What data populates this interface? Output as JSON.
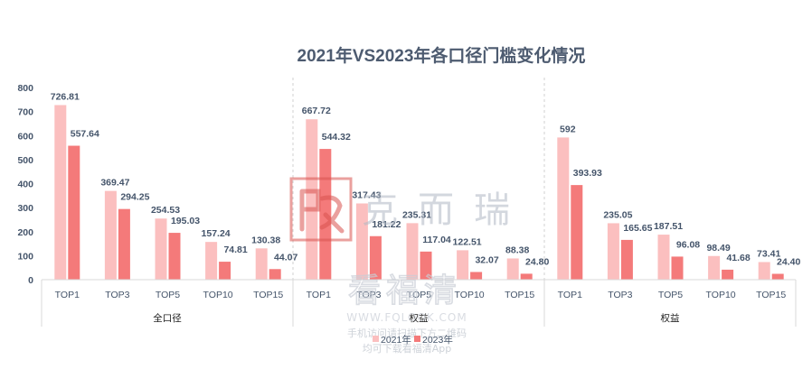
{
  "chart_data": {
    "type": "bar",
    "title": "2021年VS2023年各口径门槛变化情况",
    "groups": [
      {
        "name": "全口径",
        "categories": [
          "TOP1",
          "TOP3",
          "TOP5",
          "TOP10",
          "TOP15"
        ],
        "series": [
          {
            "name": "2021年",
            "values": [
              726.81,
              369.47,
              254.53,
              157.24,
              130.38
            ],
            "labels": [
              "726.81",
              "369.47",
              "254.53",
              "157.24",
              "130.38"
            ]
          },
          {
            "name": "2023年",
            "values": [
              557.64,
              294.25,
              195.03,
              74.81,
              44.07
            ],
            "labels": [
              "557.64",
              "294.25",
              "195.03",
              "74.81",
              "44.07"
            ]
          }
        ]
      },
      {
        "name": "权益",
        "categories": [
          "TOP1",
          "TOP3",
          "TOP5",
          "TOP10",
          "TOP15"
        ],
        "series": [
          {
            "name": "2021年",
            "values": [
              667.72,
              317.43,
              235.31,
              122.51,
              88.38
            ],
            "labels": [
              "667.72",
              "317.43",
              "235.31",
              "122.51",
              "88.38"
            ]
          },
          {
            "name": "2023年",
            "values": [
              544.32,
              181.22,
              117.04,
              32.07,
              24.8
            ],
            "labels": [
              "544.32",
              "181.22",
              "117.04",
              "32.07",
              "24.80"
            ]
          }
        ]
      },
      {
        "name": "权益",
        "categories": [
          "TOP1",
          "TOP3",
          "TOP5",
          "TOP10",
          "TOP15"
        ],
        "series": [
          {
            "name": "2021年",
            "values": [
              592,
              235.05,
              187.51,
              98.49,
              73.41
            ],
            "labels": [
              "592",
              "235.05",
              "187.51",
              "98.49",
              "73.41"
            ]
          },
          {
            "name": "2023年",
            "values": [
              393.93,
              165.65,
              96.08,
              41.68,
              24.4
            ],
            "labels": [
              "393.93",
              "165.65",
              "96.08",
              "41.68",
              "24.40"
            ]
          }
        ]
      }
    ],
    "y_ticks": [
      0,
      100,
      200,
      300,
      400,
      500,
      600,
      700,
      800
    ],
    "ylim": [
      0,
      800
    ],
    "legend": {
      "position": "bottom",
      "entries": [
        "2021年",
        "2023年"
      ]
    },
    "colors": {
      "2021年": "#fbbfbf",
      "2023年": "#f47a7a"
    },
    "grid": false
  },
  "watermark": {
    "brand": "克而瑞",
    "site_name": "看福清",
    "site_url": "WWW.FQLOOK.COM",
    "line1": "手机访问请扫描下方二维码",
    "line2": "均可下载看福清App"
  }
}
